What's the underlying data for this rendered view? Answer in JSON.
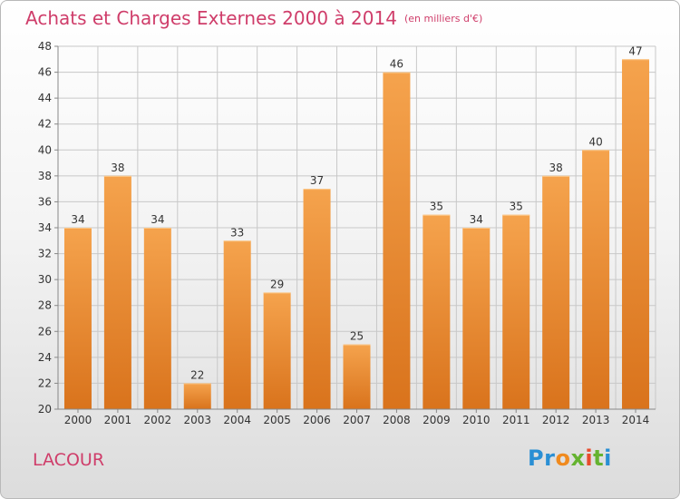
{
  "header": {
    "title": "Achats et Charges Externes 2000 à 2014",
    "subtitle": "(en milliers d'€)"
  },
  "footer": {
    "commune": "LACOUR",
    "logo_text": "Proxiti"
  },
  "colors": {
    "accent": "#cf3d6a",
    "bar_top": "#f5a34d",
    "bar_bottom": "#d9731c",
    "grid": "#c8c8c8"
  },
  "chart_data": {
    "type": "bar",
    "title": "Achats et Charges Externes 2000 à 2014",
    "xlabel": "",
    "ylabel": "",
    "categories": [
      "2000",
      "2001",
      "2002",
      "2003",
      "2004",
      "2005",
      "2006",
      "2007",
      "2008",
      "2009",
      "2010",
      "2011",
      "2012",
      "2013",
      "2014"
    ],
    "values": [
      34,
      38,
      34,
      22,
      33,
      29,
      37,
      25,
      46,
      35,
      34,
      35,
      38,
      40,
      47
    ],
    "ylim": [
      20,
      48
    ],
    "yticks": [
      20,
      22,
      24,
      26,
      28,
      30,
      32,
      34,
      36,
      38,
      40,
      42,
      44,
      46,
      48
    ],
    "grid": true,
    "data_labels": true
  }
}
